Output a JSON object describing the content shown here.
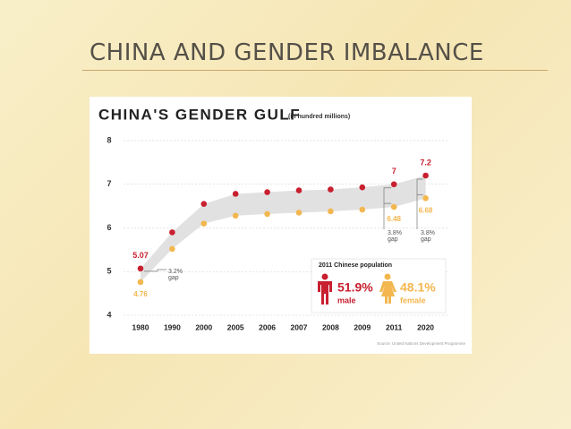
{
  "slide_title": "CHINA AND GENDER IMBALANCE",
  "chart_data": {
    "type": "line",
    "title": "CHINA'S GENDER GULF",
    "subtitle": "(in hundred millions)",
    "categories": [
      "1980",
      "1990",
      "2000",
      "2005",
      "2006",
      "2007",
      "2008",
      "2009",
      "2011",
      "2020"
    ],
    "series": [
      {
        "name": "male",
        "color": "#c8202f",
        "values": [
          5.07,
          5.9,
          6.55,
          6.78,
          6.82,
          6.86,
          6.88,
          6.93,
          7,
          7.2
        ]
      },
      {
        "name": "female",
        "color": "#f3b74f",
        "values": [
          4.76,
          5.52,
          6.1,
          6.28,
          6.32,
          6.35,
          6.38,
          6.42,
          6.48,
          6.68
        ]
      }
    ],
    "ylim": [
      4,
      8
    ],
    "yticks": [
      4,
      5,
      6,
      7,
      8
    ],
    "grid": true,
    "gap_notes": [
      {
        "pct": "3.2%",
        "word": "gap"
      },
      {
        "pct": "3.8%",
        "word": "gap"
      },
      {
        "pct": "3.8%",
        "word": "gap"
      }
    ],
    "inset": {
      "title": "2011 Chinese population",
      "items": [
        {
          "pct": "51.9%",
          "label": "male",
          "color": "#c8202f"
        },
        {
          "pct": "48.1%",
          "label": "female",
          "color": "#f3b74f"
        }
      ]
    },
    "source": "Source: United Nations Development Programme"
  }
}
